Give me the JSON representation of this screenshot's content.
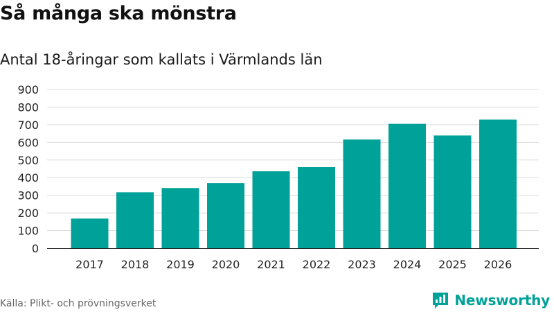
{
  "header": {
    "title": "Så många ska mönstra",
    "subtitle": "Antal 18-åringar som kallats i Värmlands län"
  },
  "footer": {
    "source": "Källa: Plikt- och prövningsverket",
    "brand_name": "Newsworthy",
    "brand_icon": "bar-chart-speech-bubble-icon"
  },
  "colors": {
    "bar": "#00a199",
    "grid": "#dcdcdc",
    "axis": "#222222",
    "brand": "#00a199",
    "source_text": "#666666"
  },
  "chart_data": {
    "type": "bar",
    "title": "Så många ska mönstra",
    "subtitle": "Antal 18-åringar som kallats i Värmlands län",
    "xlabel": "",
    "ylabel": "",
    "categories": [
      "2017",
      "2018",
      "2019",
      "2020",
      "2021",
      "2022",
      "2023",
      "2024",
      "2025",
      "2026"
    ],
    "values": [
      168,
      317,
      341,
      369,
      436,
      460,
      616,
      705,
      639,
      729
    ],
    "ylim": [
      0,
      900
    ],
    "yticks": [
      0,
      100,
      200,
      300,
      400,
      500,
      600,
      700,
      800,
      900
    ],
    "ytick_labels": [
      "0",
      "100",
      "200",
      "300",
      "400",
      "500",
      "600",
      "700",
      "800",
      "900"
    ],
    "grid": true,
    "legend": "none"
  }
}
